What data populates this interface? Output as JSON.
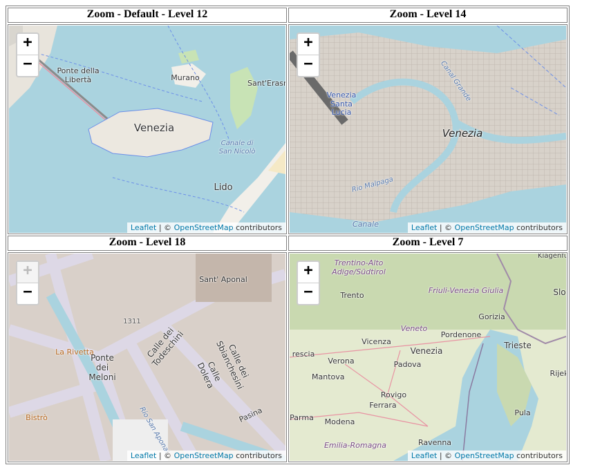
{
  "maps": [
    {
      "title": "Zoom - Default - Level 12",
      "zoom_in": "+",
      "zoom_out": "−",
      "labels": [
        "Ponte della Libertà",
        "Murano",
        "Sant'Erasm",
        "Venezia",
        "Canale di San Nicolò",
        "Lido"
      ],
      "attribution": {
        "leaflet": "Leaflet",
        "separator": "| ©",
        "osm": "OpenStreetMap",
        "suffix": "contributors"
      }
    },
    {
      "title": "Zoom - Level 14",
      "zoom_in": "+",
      "zoom_out": "−",
      "labels": [
        "Venezia Santa Lucia",
        "Venezia",
        "Rio Malpaga",
        "Canal Grande",
        "Canale"
      ],
      "attribution": {
        "leaflet": "Leaflet",
        "separator": "| ©",
        "osm": "OpenStreetMap",
        "suffix": "contributors"
      }
    },
    {
      "title": "Zoom - Level 18",
      "zoom_in": "+",
      "zoom_out": "−",
      "labels": [
        "Sant' Aponal",
        "1311",
        "La Rivetta",
        "Ponte dei Meloni",
        "Calle dei Todeschini",
        "Calle Dolera",
        "Calle dei Sbianchesini",
        "Bistrò",
        "Pasina",
        "Rio San Aponal"
      ],
      "attribution": {
        "leaflet": "Leaflet",
        "separator": "| ©",
        "osm": "OpenStreetMap",
        "suffix": "contributors"
      }
    },
    {
      "title": "Zoom - Level 7",
      "zoom_in": "+",
      "zoom_out": "−",
      "labels": [
        "Klagenfurt",
        "Trentino-Alto Adige/Südtirol",
        "Trento",
        "Friuli-Venezia Giulia",
        "Gorizia",
        "Veneto",
        "Pordenone",
        "Vicenza",
        "Venezia",
        "Trieste",
        "rescia",
        "Verona",
        "Padova",
        "Mantova",
        "Rovigo",
        "Ferrara",
        "Parma",
        "Modena",
        "Pula",
        "Ravenna",
        "Emilia-Romagna",
        "Rijek",
        "Slo"
      ],
      "attribution": {
        "leaflet": "Leaflet",
        "separator": "| ©",
        "osm": "OpenStreetMap",
        "suffix": "contributors"
      }
    }
  ]
}
